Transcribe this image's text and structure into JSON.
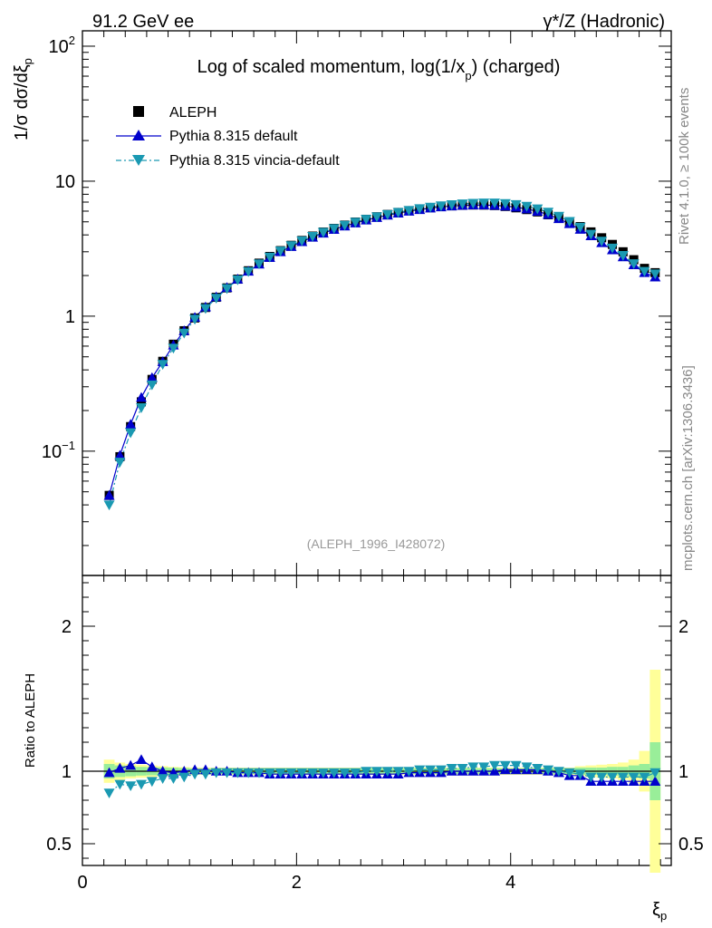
{
  "header": {
    "left": "91.2 GeV ee",
    "right_main": "γ*/Z (Hadronic)"
  },
  "side_labels": {
    "rivet": "Rivet 4.1.0, ≥ 100k events",
    "mcplots": "mcplots.cern.ch [arXiv:1306.3436]"
  },
  "chart_data": [
    {
      "type": "scatter",
      "panel": "main",
      "title": "Log of scaled momentum, log(1/x",
      "title_sub": "p",
      "title_tail": ") (charged)",
      "ylabel": "1/σ  dσ/dξ",
      "ylabel_sub": "p",
      "yscale": "log",
      "ylim": [
        0.012,
        130
      ],
      "xlim": [
        0,
        5.5
      ],
      "yticks": [
        {
          "v": 0.1,
          "base": "10",
          "exp": "−1"
        },
        {
          "v": 1,
          "label": "1"
        },
        {
          "v": 10,
          "label": "10"
        },
        {
          "v": 100,
          "base": "10",
          "exp": "2"
        }
      ],
      "watermark": "(ALEPH_1996_I428072)",
      "x": [
        0.25,
        0.35,
        0.45,
        0.55,
        0.65,
        0.75,
        0.85,
        0.95,
        1.05,
        1.15,
        1.25,
        1.35,
        1.45,
        1.55,
        1.65,
        1.75,
        1.85,
        1.95,
        2.05,
        2.15,
        2.25,
        2.35,
        2.45,
        2.55,
        2.65,
        2.75,
        2.85,
        2.95,
        3.05,
        3.15,
        3.25,
        3.35,
        3.45,
        3.55,
        3.65,
        3.75,
        3.85,
        3.95,
        4.05,
        4.15,
        4.25,
        4.35,
        4.45,
        4.55,
        4.65,
        4.75,
        4.85,
        4.95,
        5.05,
        5.15,
        5.25,
        5.35
      ],
      "series": [
        {
          "name": "ALEPH",
          "style": "square",
          "values": [
            0.047,
            0.091,
            0.152,
            0.232,
            0.34,
            0.463,
            0.62,
            0.78,
            0.97,
            1.16,
            1.38,
            1.62,
            1.88,
            2.17,
            2.47,
            2.77,
            3.06,
            3.35,
            3.64,
            3.92,
            4.2,
            4.47,
            4.73,
            4.98,
            5.22,
            5.45,
            5.67,
            5.87,
            6.05,
            6.21,
            6.36,
            6.48,
            6.57,
            6.63,
            6.66,
            6.65,
            6.6,
            6.5,
            6.35,
            6.16,
            5.92,
            5.64,
            5.33,
            4.98,
            4.61,
            4.21,
            3.81,
            3.4,
            3.0,
            2.62,
            2.26,
            2.1
          ]
        },
        {
          "name": "Pythia 8.315 default",
          "style": "triangle-up",
          "color": "#0000cc",
          "values": [
            0.047,
            0.093,
            0.158,
            0.25,
            0.35,
            0.46,
            0.61,
            0.78,
            0.98,
            1.17,
            1.39,
            1.63,
            1.88,
            2.15,
            2.43,
            2.72,
            3.0,
            3.28,
            3.56,
            3.84,
            4.12,
            4.39,
            4.65,
            4.9,
            5.15,
            5.38,
            5.6,
            5.8,
            5.99,
            6.16,
            6.32,
            6.45,
            6.55,
            6.62,
            6.66,
            6.66,
            6.62,
            6.54,
            6.42,
            6.23,
            5.98,
            5.66,
            5.27,
            4.84,
            4.4,
            3.94,
            3.5,
            3.1,
            2.75,
            2.4,
            2.1,
            1.95
          ]
        },
        {
          "name": "Pythia 8.315 vincia-default",
          "style": "triangle-down",
          "color": "#1a99b2",
          "values": [
            0.04,
            0.083,
            0.137,
            0.21,
            0.31,
            0.44,
            0.58,
            0.75,
            0.95,
            1.14,
            1.36,
            1.6,
            1.86,
            2.14,
            2.44,
            2.74,
            3.04,
            3.33,
            3.62,
            3.9,
            4.18,
            4.46,
            4.72,
            4.97,
            5.22,
            5.45,
            5.67,
            5.88,
            6.08,
            6.26,
            6.43,
            6.57,
            6.7,
            6.8,
            6.86,
            6.9,
            6.9,
            6.84,
            6.72,
            6.52,
            6.24,
            5.9,
            5.5,
            5.04,
            4.56,
            4.05,
            3.6,
            3.2,
            2.82,
            2.45,
            2.15,
            2.06
          ]
        }
      ],
      "legend": [
        "ALEPH",
        "Pythia 8.315 default",
        "Pythia 8.315 vincia-default"
      ]
    },
    {
      "type": "scatter",
      "panel": "ratio",
      "ylabel": "Ratio to ALEPH",
      "ylim": [
        0.35,
        2.35
      ],
      "xlim": [
        0,
        5.5
      ],
      "xlabel": "ξ",
      "xlabel_sub": "p",
      "xticks": [
        {
          "v": 0,
          "label": "0"
        },
        {
          "v": 2,
          "label": "2"
        },
        {
          "v": 4,
          "label": "4"
        }
      ],
      "yticks": [
        {
          "v": 0.5,
          "label": "0.5"
        },
        {
          "v": 1,
          "label": "1"
        },
        {
          "v": 2,
          "label": "2"
        }
      ],
      "x": [
        0.25,
        0.35,
        0.45,
        0.55,
        0.65,
        0.75,
        0.85,
        0.95,
        1.05,
        1.15,
        1.25,
        1.35,
        1.45,
        1.55,
        1.65,
        1.75,
        1.85,
        1.95,
        2.05,
        2.15,
        2.25,
        2.35,
        2.45,
        2.55,
        2.65,
        2.75,
        2.85,
        2.95,
        3.05,
        3.15,
        3.25,
        3.35,
        3.45,
        3.55,
        3.65,
        3.75,
        3.85,
        3.95,
        4.05,
        4.15,
        4.25,
        4.35,
        4.45,
        4.55,
        4.65,
        4.75,
        4.85,
        4.95,
        5.05,
        5.15,
        5.25,
        5.35
      ],
      "band_inner": [
        0.05,
        0.04,
        0.035,
        0.03,
        0.028,
        0.026,
        0.024,
        0.022,
        0.02,
        0.02,
        0.02,
        0.02,
        0.02,
        0.02,
        0.02,
        0.02,
        0.02,
        0.02,
        0.02,
        0.02,
        0.02,
        0.02,
        0.02,
        0.02,
        0.02,
        0.02,
        0.02,
        0.02,
        0.02,
        0.02,
        0.02,
        0.02,
        0.02,
        0.02,
        0.02,
        0.02,
        0.02,
        0.02,
        0.02,
        0.02,
        0.02,
        0.02,
        0.02,
        0.02,
        0.025,
        0.025,
        0.025,
        0.03,
        0.03,
        0.04,
        0.05,
        0.2
      ],
      "band_outer": [
        0.08,
        0.06,
        0.05,
        0.045,
        0.04,
        0.035,
        0.03,
        0.028,
        0.026,
        0.025,
        0.025,
        0.025,
        0.025,
        0.025,
        0.025,
        0.025,
        0.025,
        0.025,
        0.025,
        0.025,
        0.025,
        0.025,
        0.025,
        0.025,
        0.025,
        0.025,
        0.025,
        0.025,
        0.025,
        0.025,
        0.025,
        0.025,
        0.025,
        0.025,
        0.025,
        0.025,
        0.025,
        0.025,
        0.025,
        0.025,
        0.025,
        0.025,
        0.025,
        0.025,
        0.035,
        0.04,
        0.045,
        0.05,
        0.06,
        0.08,
        0.14,
        0.7
      ],
      "series": [
        {
          "name": "Pythia 8.315 default",
          "style": "triangle-up",
          "color": "#0000cc",
          "values": [
            0.99,
            1.02,
            1.04,
            1.08,
            1.03,
            1.0,
            0.99,
            1.0,
            1.01,
            1.01,
            1.0,
            1.0,
            0.99,
            0.99,
            0.99,
            0.98,
            0.98,
            0.98,
            0.98,
            0.98,
            0.98,
            0.98,
            0.98,
            0.98,
            0.98,
            0.98,
            0.98,
            0.98,
            0.99,
            0.99,
            0.99,
            0.99,
            1.0,
            1.0,
            1.0,
            1.0,
            1.0,
            1.01,
            1.01,
            1.01,
            1.01,
            1.0,
            0.99,
            0.97,
            0.97,
            0.93,
            0.93,
            0.93,
            0.93,
            0.93,
            0.93,
            0.93
          ]
        },
        {
          "name": "Pythia 8.315 vincia-default",
          "style": "triangle-down",
          "color": "#1a99b2",
          "values": [
            0.85,
            0.91,
            0.9,
            0.91,
            0.93,
            0.95,
            0.95,
            0.96,
            0.98,
            0.98,
            0.99,
            0.99,
            0.99,
            0.99,
            0.99,
            0.99,
            0.99,
            0.99,
            0.99,
            0.99,
            0.99,
            0.99,
            0.99,
            0.99,
            1.0,
            1.0,
            1.0,
            1.0,
            1.0,
            1.01,
            1.01,
            1.01,
            1.02,
            1.02,
            1.03,
            1.03,
            1.04,
            1.04,
            1.04,
            1.03,
            1.02,
            1.01,
            1.0,
            0.99,
            0.98,
            0.96,
            0.96,
            0.96,
            0.96,
            0.96,
            0.96,
            0.99
          ]
        }
      ]
    }
  ]
}
